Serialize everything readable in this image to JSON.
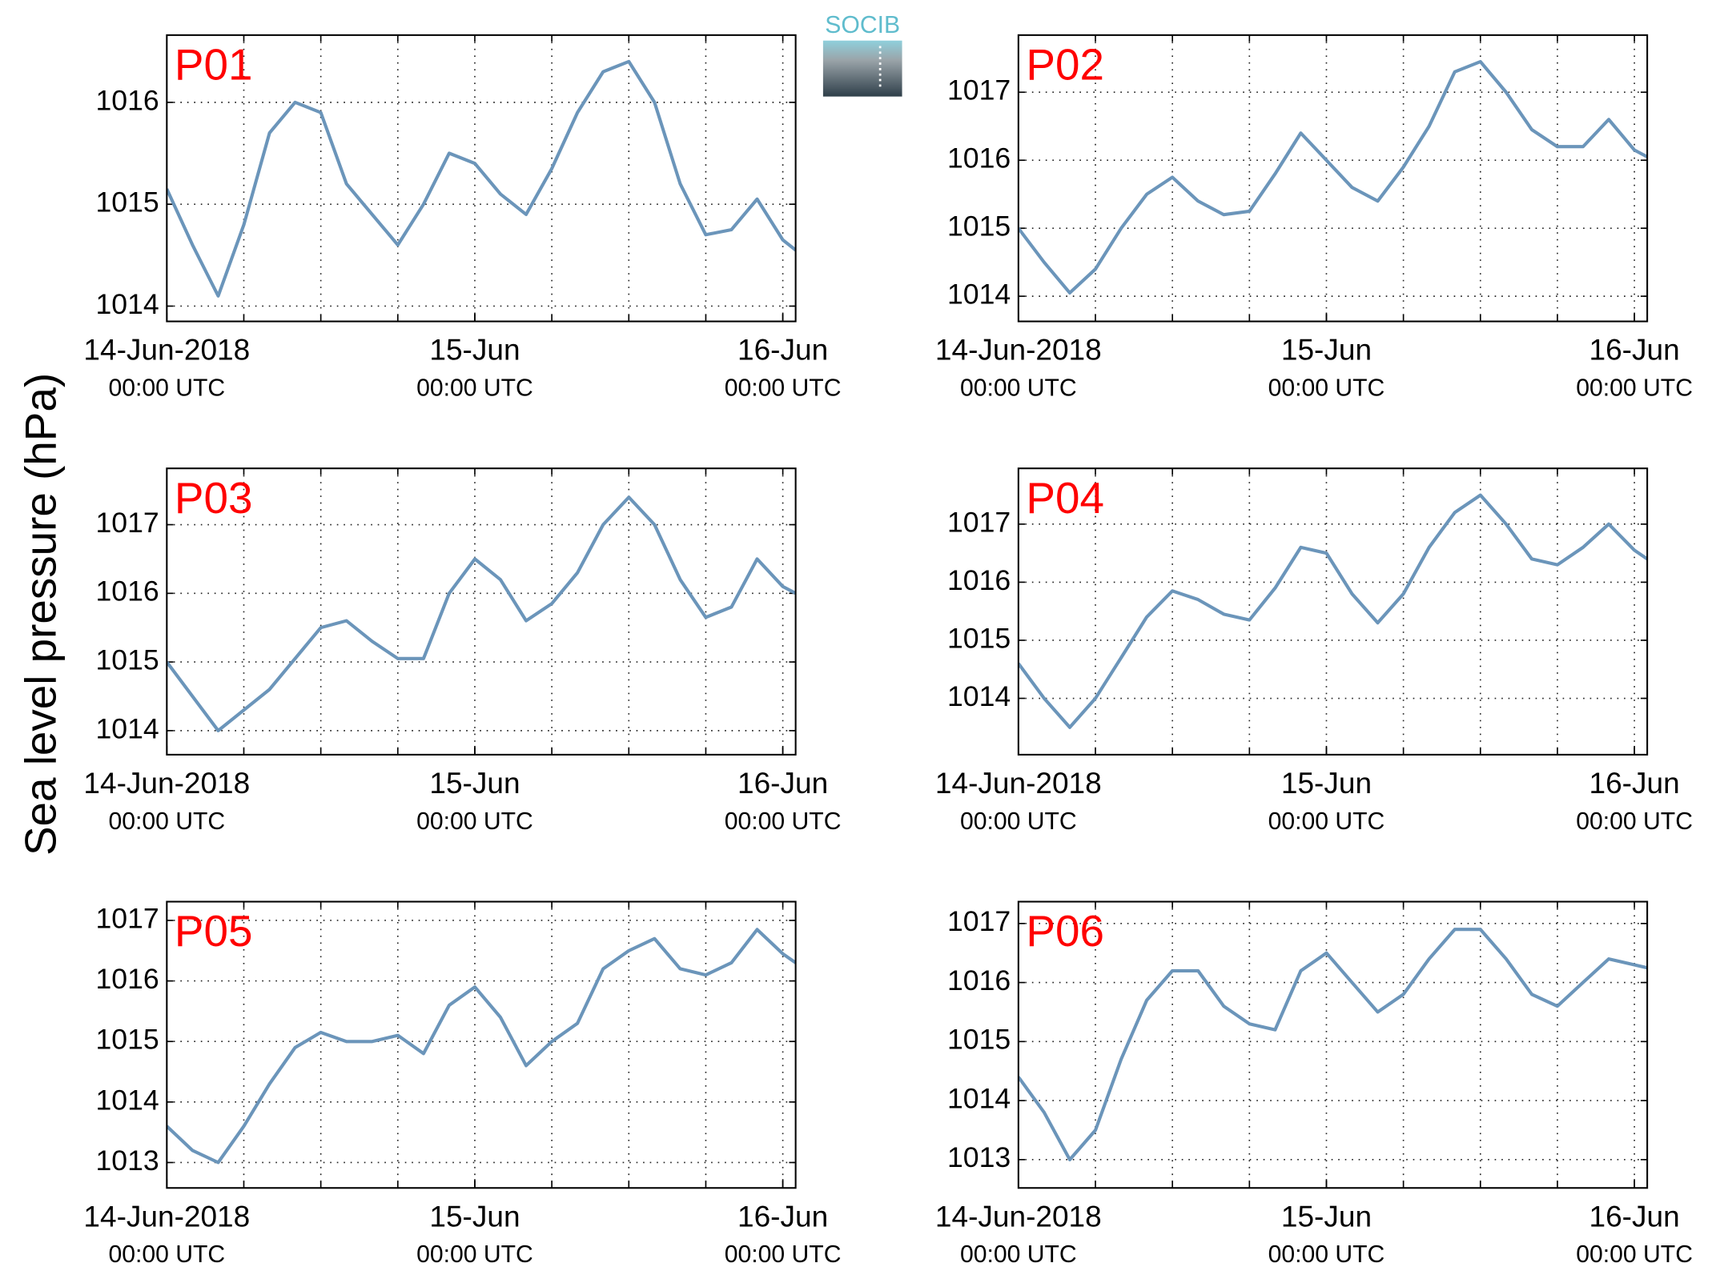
{
  "ylabel": "Sea level pressure (hPa)",
  "logo": "SOCIB",
  "chart_data": [
    {
      "type": "line",
      "title": "P01",
      "color": "#6b95ba",
      "grid": true,
      "x": [
        "2018-06-14T00:00",
        "2018-06-14T02:00",
        "2018-06-14T04:00",
        "2018-06-14T06:00",
        "2018-06-14T08:00",
        "2018-06-14T10:00",
        "2018-06-14T12:00",
        "2018-06-14T14:00",
        "2018-06-14T16:00",
        "2018-06-14T18:00",
        "2018-06-14T20:00",
        "2018-06-14T22:00",
        "2018-06-15T00:00",
        "2018-06-15T02:00",
        "2018-06-15T04:00",
        "2018-06-15T06:00",
        "2018-06-15T08:00",
        "2018-06-15T10:00",
        "2018-06-15T12:00",
        "2018-06-15T14:00",
        "2018-06-15T16:00",
        "2018-06-15T18:00",
        "2018-06-15T20:00",
        "2018-06-15T22:00",
        "2018-06-16T00:00",
        "2018-06-16T01:00"
      ],
      "values": [
        1015.15,
        1014.6,
        1014.1,
        1014.8,
        1015.7,
        1016.0,
        1015.9,
        1015.2,
        1014.9,
        1014.6,
        1015.0,
        1015.5,
        1015.4,
        1015.1,
        1014.9,
        1015.35,
        1015.9,
        1016.3,
        1016.4,
        1016.0,
        1015.2,
        1014.7,
        1014.75,
        1015.05,
        1014.65,
        1014.55
      ],
      "xlim": [
        "2018-06-14T00:00",
        "2018-06-16T01:00"
      ],
      "xticks": [
        {
          "value": "2018-06-14T00:00",
          "label": "14-Jun-2018",
          "sublabel": "00:00 UTC"
        },
        {
          "value": "2018-06-15T00:00",
          "label": "15-Jun",
          "sublabel": "00:00 UTC"
        },
        {
          "value": "2018-06-16T00:00",
          "label": "16-Jun",
          "sublabel": "00:00 UTC"
        }
      ],
      "xgrid": [
        "2018-06-14T06:00",
        "2018-06-14T12:00",
        "2018-06-14T18:00",
        "2018-06-15T00:00",
        "2018-06-15T06:00",
        "2018-06-15T12:00",
        "2018-06-15T18:00",
        "2018-06-16T00:00"
      ],
      "ylim": [
        1013.85,
        1016.66
      ],
      "yticks": [
        1014,
        1015,
        1016
      ]
    },
    {
      "type": "line",
      "title": "P02",
      "color": "#6b95ba",
      "grid": true,
      "x": [
        "2018-06-14T00:00",
        "2018-06-14T02:00",
        "2018-06-14T04:00",
        "2018-06-14T06:00",
        "2018-06-14T08:00",
        "2018-06-14T10:00",
        "2018-06-14T12:00",
        "2018-06-14T14:00",
        "2018-06-14T16:00",
        "2018-06-14T18:00",
        "2018-06-14T20:00",
        "2018-06-14T22:00",
        "2018-06-15T00:00",
        "2018-06-15T02:00",
        "2018-06-15T04:00",
        "2018-06-15T06:00",
        "2018-06-15T08:00",
        "2018-06-15T10:00",
        "2018-06-15T12:00",
        "2018-06-15T14:00",
        "2018-06-15T16:00",
        "2018-06-15T18:00",
        "2018-06-15T20:00",
        "2018-06-15T22:00",
        "2018-06-16T00:00",
        "2018-06-16T01:00"
      ],
      "values": [
        1015.0,
        1014.5,
        1014.05,
        1014.4,
        1015.0,
        1015.5,
        1015.75,
        1015.4,
        1015.2,
        1015.25,
        1015.8,
        1016.4,
        1016.0,
        1015.6,
        1015.4,
        1015.9,
        1016.5,
        1017.3,
        1017.45,
        1017.0,
        1016.45,
        1016.2,
        1016.2,
        1016.6,
        1016.15,
        1016.05
      ],
      "xlim": [
        "2018-06-14T00:00",
        "2018-06-16T01:00"
      ],
      "xticks": [
        {
          "value": "2018-06-14T00:00",
          "label": "14-Jun-2018",
          "sublabel": "00:00 UTC"
        },
        {
          "value": "2018-06-15T00:00",
          "label": "15-Jun",
          "sublabel": "00:00 UTC"
        },
        {
          "value": "2018-06-16T00:00",
          "label": "16-Jun",
          "sublabel": "00:00 UTC"
        }
      ],
      "xgrid": [
        "2018-06-14T06:00",
        "2018-06-14T12:00",
        "2018-06-14T18:00",
        "2018-06-15T00:00",
        "2018-06-15T06:00",
        "2018-06-15T12:00",
        "2018-06-15T18:00",
        "2018-06-16T00:00"
      ],
      "ylim": [
        1013.63,
        1017.84
      ],
      "yticks": [
        1014,
        1015,
        1016,
        1017
      ]
    },
    {
      "type": "line",
      "title": "P03",
      "color": "#6b95ba",
      "grid": true,
      "x": [
        "2018-06-14T00:00",
        "2018-06-14T02:00",
        "2018-06-14T04:00",
        "2018-06-14T06:00",
        "2018-06-14T08:00",
        "2018-06-14T10:00",
        "2018-06-14T12:00",
        "2018-06-14T14:00",
        "2018-06-14T16:00",
        "2018-06-14T18:00",
        "2018-06-14T20:00",
        "2018-06-14T22:00",
        "2018-06-15T00:00",
        "2018-06-15T02:00",
        "2018-06-15T04:00",
        "2018-06-15T06:00",
        "2018-06-15T08:00",
        "2018-06-15T10:00",
        "2018-06-15T12:00",
        "2018-06-15T14:00",
        "2018-06-15T16:00",
        "2018-06-15T18:00",
        "2018-06-15T20:00",
        "2018-06-15T22:00",
        "2018-06-16T00:00",
        "2018-06-16T01:00"
      ],
      "values": [
        1015.0,
        1014.5,
        1014.0,
        1014.3,
        1014.6,
        1015.05,
        1015.5,
        1015.6,
        1015.3,
        1015.05,
        1015.05,
        1016.0,
        1016.5,
        1016.2,
        1015.6,
        1015.85,
        1016.3,
        1017.0,
        1017.4,
        1017.0,
        1016.2,
        1015.65,
        1015.8,
        1016.5,
        1016.1,
        1016.0
      ],
      "xlim": [
        "2018-06-14T00:00",
        "2018-06-16T01:00"
      ],
      "xticks": [
        {
          "value": "2018-06-14T00:00",
          "label": "14-Jun-2018",
          "sublabel": "00:00 UTC"
        },
        {
          "value": "2018-06-15T00:00",
          "label": "15-Jun",
          "sublabel": "00:00 UTC"
        },
        {
          "value": "2018-06-16T00:00",
          "label": "16-Jun",
          "sublabel": "00:00 UTC"
        }
      ],
      "xgrid": [
        "2018-06-14T06:00",
        "2018-06-14T12:00",
        "2018-06-14T18:00",
        "2018-06-15T00:00",
        "2018-06-15T06:00",
        "2018-06-15T12:00",
        "2018-06-15T18:00",
        "2018-06-16T00:00"
      ],
      "ylim": [
        1013.65,
        1017.82
      ],
      "yticks": [
        1014,
        1015,
        1016,
        1017
      ]
    },
    {
      "type": "line",
      "title": "P04",
      "color": "#6b95ba",
      "grid": true,
      "x": [
        "2018-06-14T00:00",
        "2018-06-14T02:00",
        "2018-06-14T04:00",
        "2018-06-14T06:00",
        "2018-06-14T08:00",
        "2018-06-14T10:00",
        "2018-06-14T12:00",
        "2018-06-14T14:00",
        "2018-06-14T16:00",
        "2018-06-14T18:00",
        "2018-06-14T20:00",
        "2018-06-14T22:00",
        "2018-06-15T00:00",
        "2018-06-15T02:00",
        "2018-06-15T04:00",
        "2018-06-15T06:00",
        "2018-06-15T08:00",
        "2018-06-15T10:00",
        "2018-06-15T12:00",
        "2018-06-15T14:00",
        "2018-06-15T16:00",
        "2018-06-15T18:00",
        "2018-06-15T20:00",
        "2018-06-15T22:00",
        "2018-06-16T00:00",
        "2018-06-16T01:00"
      ],
      "values": [
        1014.6,
        1014.0,
        1013.5,
        1014.0,
        1014.7,
        1015.4,
        1015.85,
        1015.7,
        1015.45,
        1015.35,
        1015.9,
        1016.6,
        1016.5,
        1015.8,
        1015.3,
        1015.8,
        1016.6,
        1017.2,
        1017.5,
        1017.0,
        1016.4,
        1016.3,
        1016.6,
        1017.0,
        1016.55,
        1016.4
      ],
      "xlim": [
        "2018-06-14T00:00",
        "2018-06-16T01:00"
      ],
      "xticks": [
        {
          "value": "2018-06-14T00:00",
          "label": "14-Jun-2018",
          "sublabel": "00:00 UTC"
        },
        {
          "value": "2018-06-15T00:00",
          "label": "15-Jun",
          "sublabel": "00:00 UTC"
        },
        {
          "value": "2018-06-16T00:00",
          "label": "16-Jun",
          "sublabel": "00:00 UTC"
        }
      ],
      "xgrid": [
        "2018-06-14T06:00",
        "2018-06-14T12:00",
        "2018-06-14T18:00",
        "2018-06-15T00:00",
        "2018-06-15T06:00",
        "2018-06-15T12:00",
        "2018-06-15T18:00",
        "2018-06-16T00:00"
      ],
      "ylim": [
        1013.03,
        1017.96
      ],
      "yticks": [
        1014,
        1015,
        1016,
        1017
      ]
    },
    {
      "type": "line",
      "title": "P05",
      "color": "#6b95ba",
      "grid": true,
      "x": [
        "2018-06-14T00:00",
        "2018-06-14T02:00",
        "2018-06-14T04:00",
        "2018-06-14T06:00",
        "2018-06-14T08:00",
        "2018-06-14T10:00",
        "2018-06-14T12:00",
        "2018-06-14T14:00",
        "2018-06-14T16:00",
        "2018-06-14T18:00",
        "2018-06-14T20:00",
        "2018-06-14T22:00",
        "2018-06-15T00:00",
        "2018-06-15T02:00",
        "2018-06-15T04:00",
        "2018-06-15T06:00",
        "2018-06-15T08:00",
        "2018-06-15T10:00",
        "2018-06-15T12:00",
        "2018-06-15T14:00",
        "2018-06-15T16:00",
        "2018-06-15T18:00",
        "2018-06-15T20:00",
        "2018-06-15T22:00",
        "2018-06-16T00:00",
        "2018-06-16T01:00"
      ],
      "values": [
        1013.6,
        1013.2,
        1013.0,
        1013.6,
        1014.3,
        1014.9,
        1015.15,
        1015.0,
        1015.0,
        1015.1,
        1014.8,
        1015.6,
        1015.9,
        1015.4,
        1014.6,
        1015.0,
        1015.3,
        1016.2,
        1016.5,
        1016.7,
        1016.2,
        1016.1,
        1016.3,
        1016.85,
        1016.45,
        1016.3
      ],
      "xlim": [
        "2018-06-14T00:00",
        "2018-06-16T01:00"
      ],
      "xticks": [
        {
          "value": "2018-06-14T00:00",
          "label": "14-Jun-2018",
          "sublabel": "00:00 UTC"
        },
        {
          "value": "2018-06-15T00:00",
          "label": "15-Jun",
          "sublabel": "00:00 UTC"
        },
        {
          "value": "2018-06-16T00:00",
          "label": "16-Jun",
          "sublabel": "00:00 UTC"
        }
      ],
      "xgrid": [
        "2018-06-14T06:00",
        "2018-06-14T12:00",
        "2018-06-14T18:00",
        "2018-06-15T00:00",
        "2018-06-15T06:00",
        "2018-06-15T12:00",
        "2018-06-15T18:00",
        "2018-06-16T00:00"
      ],
      "ylim": [
        1012.58,
        1017.31
      ],
      "yticks": [
        1013,
        1014,
        1015,
        1016,
        1017
      ]
    },
    {
      "type": "line",
      "title": "P06",
      "color": "#6b95ba",
      "grid": true,
      "x": [
        "2018-06-14T00:00",
        "2018-06-14T02:00",
        "2018-06-14T04:00",
        "2018-06-14T06:00",
        "2018-06-14T08:00",
        "2018-06-14T10:00",
        "2018-06-14T12:00",
        "2018-06-14T14:00",
        "2018-06-14T16:00",
        "2018-06-14T18:00",
        "2018-06-14T20:00",
        "2018-06-14T22:00",
        "2018-06-15T00:00",
        "2018-06-15T02:00",
        "2018-06-15T04:00",
        "2018-06-15T06:00",
        "2018-06-15T08:00",
        "2018-06-15T10:00",
        "2018-06-15T12:00",
        "2018-06-15T14:00",
        "2018-06-15T16:00",
        "2018-06-15T18:00",
        "2018-06-15T20:00",
        "2018-06-15T22:00",
        "2018-06-16T00:00",
        "2018-06-16T01:00"
      ],
      "values": [
        1014.4,
        1013.8,
        1013.0,
        1013.5,
        1014.7,
        1015.7,
        1016.2,
        1016.2,
        1015.6,
        1015.3,
        1015.2,
        1016.2,
        1016.5,
        1016.0,
        1015.5,
        1015.8,
        1016.4,
        1016.9,
        1016.9,
        1016.4,
        1015.8,
        1015.6,
        1016.0,
        1016.4,
        1016.3,
        1016.25
      ],
      "xlim": [
        "2018-06-14T00:00",
        "2018-06-16T01:00"
      ],
      "xticks": [
        {
          "value": "2018-06-14T00:00",
          "label": "14-Jun-2018",
          "sublabel": "00:00 UTC"
        },
        {
          "value": "2018-06-15T00:00",
          "label": "15-Jun",
          "sublabel": "00:00 UTC"
        },
        {
          "value": "2018-06-16T00:00",
          "label": "16-Jun",
          "sublabel": "00:00 UTC"
        }
      ],
      "xgrid": [
        "2018-06-14T06:00",
        "2018-06-14T12:00",
        "2018-06-14T18:00",
        "2018-06-15T00:00",
        "2018-06-15T06:00",
        "2018-06-15T12:00",
        "2018-06-15T18:00",
        "2018-06-16T00:00"
      ],
      "ylim": [
        1012.52,
        1017.37
      ],
      "yticks": [
        1013,
        1014,
        1015,
        1016,
        1017
      ]
    }
  ]
}
